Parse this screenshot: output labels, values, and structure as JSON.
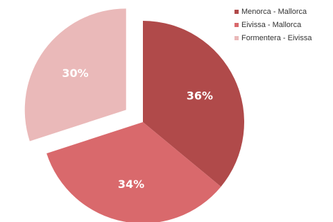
{
  "chart_data": {
    "type": "pie",
    "categories": [
      "Menorca - Mallorca",
      "Eivissa - Mallorca",
      "Formentera - Eivissa"
    ],
    "values": [
      36,
      34,
      30
    ],
    "data_labels": [
      "36%",
      "34%",
      "30%"
    ],
    "colors": [
      "#b04a4a",
      "#d9696c",
      "#eab9b9"
    ],
    "exploded": [
      "Formentera - Eivissa"
    ],
    "legend_position": "top-right"
  }
}
